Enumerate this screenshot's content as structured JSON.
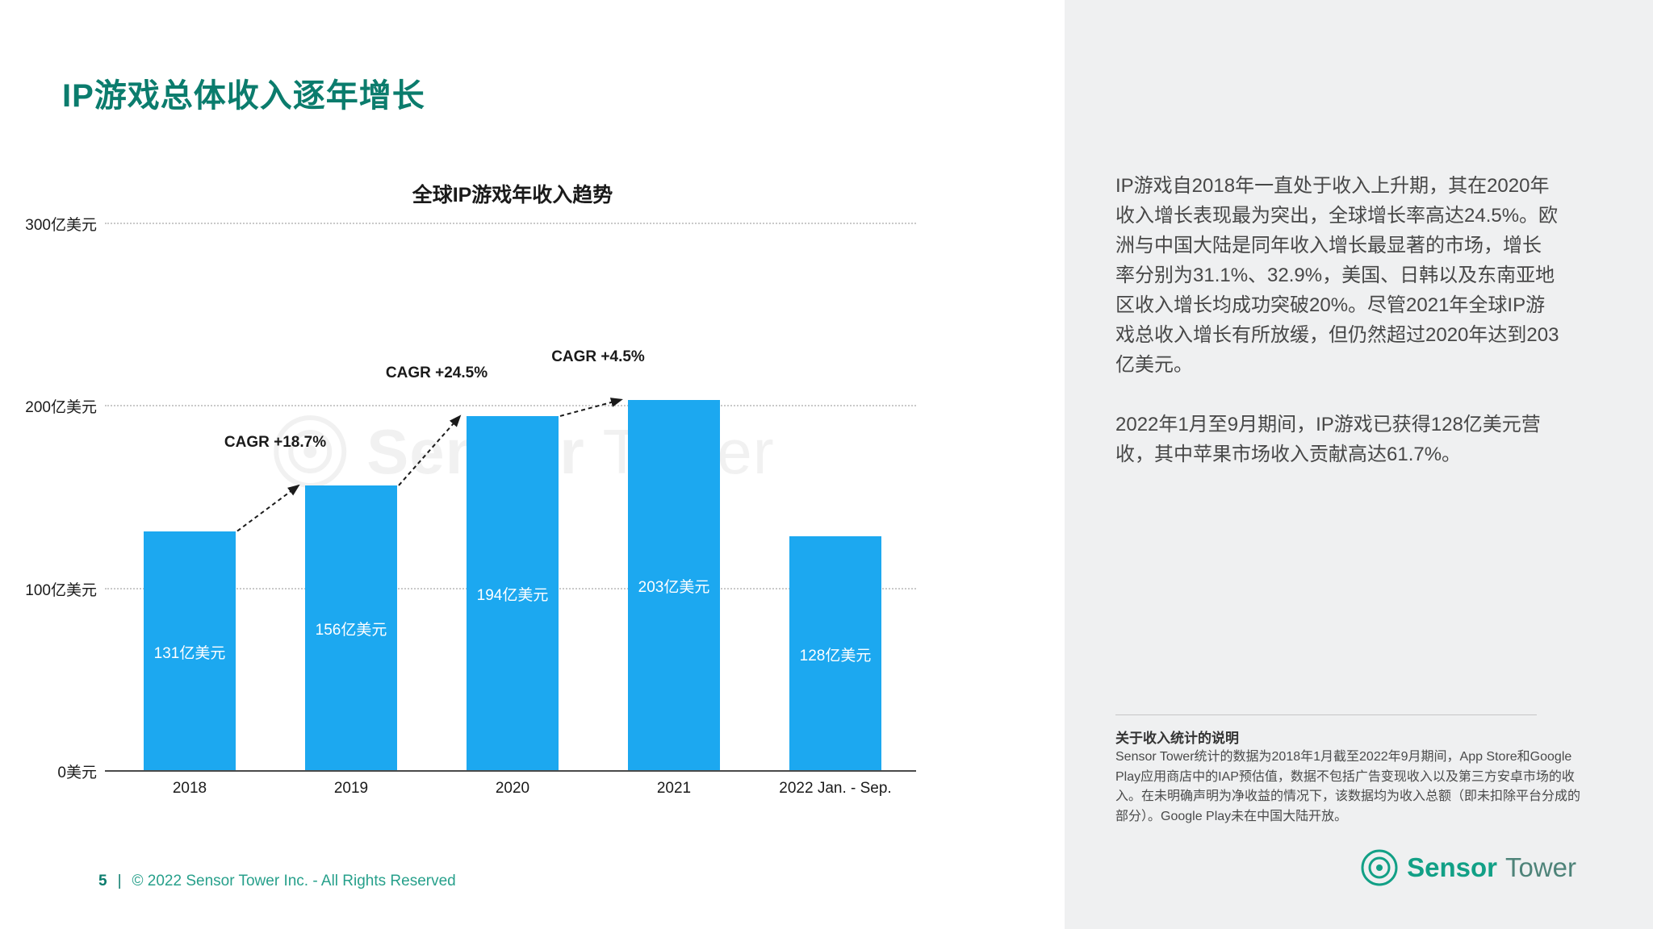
{
  "page": {
    "title": "IP游戏总体收入逐年增长",
    "footer": {
      "page_number": "5",
      "separator": "|",
      "copyright": "© 2022 Sensor Tower Inc. - All Rights Reserved"
    }
  },
  "brand": {
    "name_bold": "Sensor",
    "name_light": "Tower"
  },
  "chart_data": {
    "type": "bar",
    "title": "全球IP游戏年收入趋势",
    "categories": [
      "2018",
      "2019",
      "2020",
      "2021",
      "2022 Jan. - Sep."
    ],
    "values": [
      131,
      156,
      194,
      203,
      128
    ],
    "unit": "亿美元",
    "bar_labels": [
      "131亿美元",
      "156亿美元",
      "194亿美元",
      "203亿美元",
      "128亿美元"
    ],
    "y_ticks": [
      {
        "value": 300,
        "label": "300亿美元"
      },
      {
        "value": 200,
        "label": "200亿美元"
      },
      {
        "value": 100,
        "label": "100亿美元"
      },
      {
        "value": 0,
        "label": "0美元"
      }
    ],
    "ylim": [
      0,
      300
    ],
    "xlabel": "",
    "ylabel": "",
    "grid": "horizontal-dotted",
    "legend": "none",
    "bar_color": "#1CA8F0",
    "annotations": [
      {
        "label": "CAGR +18.7%",
        "between": [
          "2018",
          "2019"
        ]
      },
      {
        "label": "CAGR +24.5%",
        "between": [
          "2019",
          "2020"
        ]
      },
      {
        "label": "CAGR +4.5%",
        "between": [
          "2020",
          "2021"
        ]
      }
    ],
    "watermark": "SensorTower"
  },
  "sidebar": {
    "paragraphs": [
      "IP游戏自2018年一直处于收入上升期，其在2020年收入增长表现最为突出，全球增长率高达24.5%。欧洲与中国大陆是同年收入增长最显著的市场，增长率分别为31.1%、32.9%，美国、日韩以及东南亚地区收入增长均成功突破20%。尽管2021年全球IP游戏总收入增长有所放缓，但仍然超过2020年达到203亿美元。",
      "2022年1月至9月期间，IP游戏已获得128亿美元营收，其中苹果市场收入贡献高达61.7%。"
    ],
    "notes": {
      "heading": "关于收入统计的说明",
      "body": "Sensor Tower统计的数据为2018年1月截至2022年9月期间，App Store和Google Play应用商店中的IAP预估值，数据不包括广告变现收入以及第三方安卓市场的收入。在未明确声明为净收益的情况下，该数据均为收入总额（即未扣除平台分成的部分）。Google Play未在中国大陆开放。"
    }
  },
  "colors": {
    "title_teal": "#0B7C6D",
    "bar_blue": "#1CA8F0",
    "footer_teal": "#27A08B",
    "logo_green": "#12A086",
    "panel_bg": "#EFF0F1"
  }
}
